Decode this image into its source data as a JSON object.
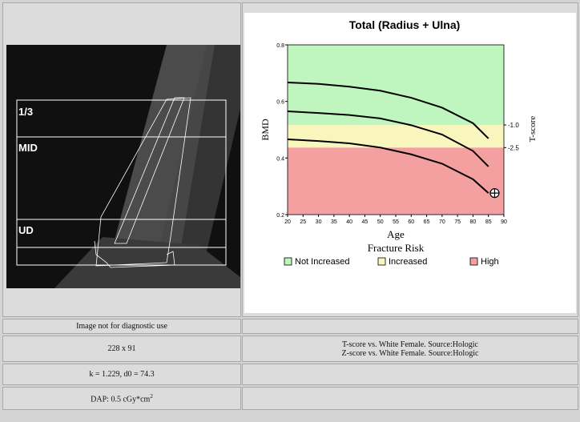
{
  "image_labels": [
    "1/3",
    "MID",
    "UD"
  ],
  "chart_data": {
    "type": "line",
    "title": "Total (Radius + Ulna)",
    "x_label": "Age",
    "y_label": "BMD",
    "y2_label": "T-score",
    "x": [
      20,
      30,
      40,
      50,
      60,
      70,
      80,
      85
    ],
    "series": [
      {
        "color": "#000000",
        "values": [
          0.667,
          0.662,
          0.652,
          0.638,
          0.613,
          0.578,
          0.523,
          0.469
        ]
      },
      {
        "color": "#000000",
        "values": [
          0.565,
          0.559,
          0.552,
          0.54,
          0.516,
          0.483,
          0.425,
          0.37
        ]
      },
      {
        "color": "#000000",
        "values": [
          0.466,
          0.46,
          0.452,
          0.437,
          0.413,
          0.38,
          0.325,
          0.276
        ]
      }
    ],
    "patient": {
      "x": 87,
      "y": 0.276
    },
    "xlim": [
      20,
      90
    ],
    "xticks": [
      20,
      25,
      30,
      35,
      40,
      45,
      50,
      55,
      60,
      65,
      70,
      75,
      80,
      85,
      90
    ],
    "ylim": [
      0.2,
      0.8
    ],
    "yticks": [
      0.2,
      0.4,
      0.6,
      0.8
    ],
    "y2lim": [
      -6.94,
      4.31
    ],
    "y2ticks": [
      {
        "value": -1,
        "label": "-1.0"
      },
      {
        "value": -2.5,
        "label": "-2.5"
      }
    ],
    "legend_title": "Fracture Risk",
    "legend": [
      {
        "label": "Not Increased",
        "color": "#bff5bf"
      },
      {
        "label": "Increased",
        "color": "#f8f6bd"
      },
      {
        "label": "High",
        "color": "#f5a0a0"
      }
    ]
  },
  "table": {
    "rows": [
      [
        "Image not for diagnostic use",
        ""
      ],
      [
        "228 x 91",
        [
          "T-score vs. White Female. Source:Hologic",
          "Z-score vs. White Female. Source:Hologic"
        ]
      ],
      [
        "k = 1.229, d0 = 74.3",
        ""
      ],
      [
        {
          "text": "DAP: 0.5 cGy*cm",
          "sup": "2"
        },
        ""
      ]
    ]
  }
}
